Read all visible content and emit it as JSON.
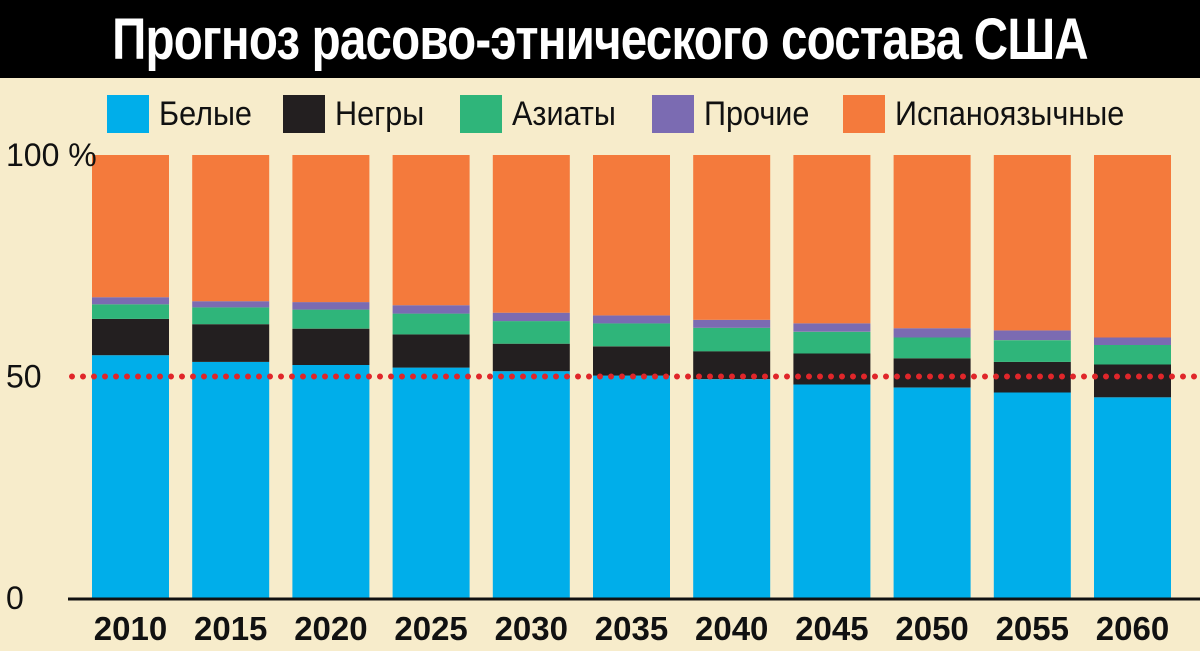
{
  "title": "Прогноз расово-этнического состава США",
  "legend": [
    {
      "label": "Белые",
      "color": "#00aeea"
    },
    {
      "label": "Негры",
      "color": "#231f20"
    },
    {
      "label": "Азиаты",
      "color": "#2fb57a"
    },
    {
      "label": "Прочие",
      "color": "#7b6bb2"
    },
    {
      "label": "Испаноязычные",
      "color": "#f47a3c"
    }
  ],
  "chart_data": {
    "type": "bar",
    "stacked": true,
    "categories": [
      "2010",
      "2015",
      "2020",
      "2025",
      "2030",
      "2035",
      "2040",
      "2045",
      "2050",
      "2055",
      "2060"
    ],
    "series": [
      {
        "name": "Белые",
        "color": "#00aeea",
        "values": [
          54.8,
          53.3,
          52.6,
          52.0,
          51.2,
          50.2,
          49.4,
          48.2,
          47.5,
          46.4,
          45.3
        ]
      },
      {
        "name": "Негры",
        "color": "#231f20",
        "values": [
          8.2,
          8.5,
          8.2,
          7.5,
          6.2,
          6.6,
          6.3,
          7.0,
          6.6,
          6.9,
          7.4
        ]
      },
      {
        "name": "Азиаты",
        "color": "#2fb57a",
        "values": [
          3.3,
          3.8,
          4.3,
          4.7,
          5.1,
          5.2,
          5.3,
          4.9,
          4.7,
          4.9,
          4.4
        ]
      },
      {
        "name": "Прочие",
        "color": "#7b6bb2",
        "values": [
          1.6,
          1.4,
          1.7,
          1.9,
          1.9,
          1.8,
          1.8,
          1.9,
          2.1,
          2.2,
          1.7
        ]
      },
      {
        "name": "Испаноязычные",
        "color": "#f47a3c",
        "values": [
          32.1,
          33.0,
          33.2,
          33.9,
          35.6,
          36.2,
          37.2,
          38.0,
          39.1,
          39.6,
          41.2
        ]
      }
    ],
    "y_ticks": [
      "0",
      "50",
      "100 %"
    ],
    "ylim": [
      0,
      100
    ],
    "reference_line": {
      "value": 50,
      "color": "#e0262a",
      "style": "dotted"
    },
    "legend_position": "top",
    "grid": false
  }
}
